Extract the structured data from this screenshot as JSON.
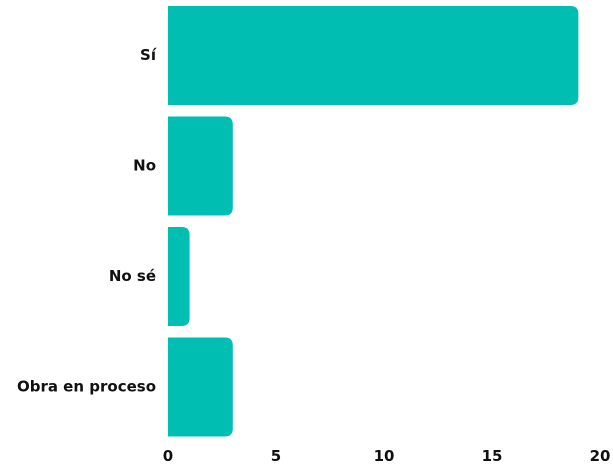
{
  "chart_data": {
    "type": "bar",
    "orientation": "horizontal",
    "title": "",
    "xlabel": "",
    "ylabel": "",
    "categories": [
      "Sí",
      "No",
      "No sé",
      "Obra en proceso"
    ],
    "values": [
      19,
      3,
      1,
      3
    ],
    "xlim": [
      0,
      20
    ],
    "xticks": [
      0,
      5,
      10,
      15,
      20
    ],
    "tick_labels": [
      "0",
      "5",
      "10",
      "15",
      "20"
    ],
    "grid": false,
    "legend": "none",
    "bar_color": "#00bfb2"
  }
}
